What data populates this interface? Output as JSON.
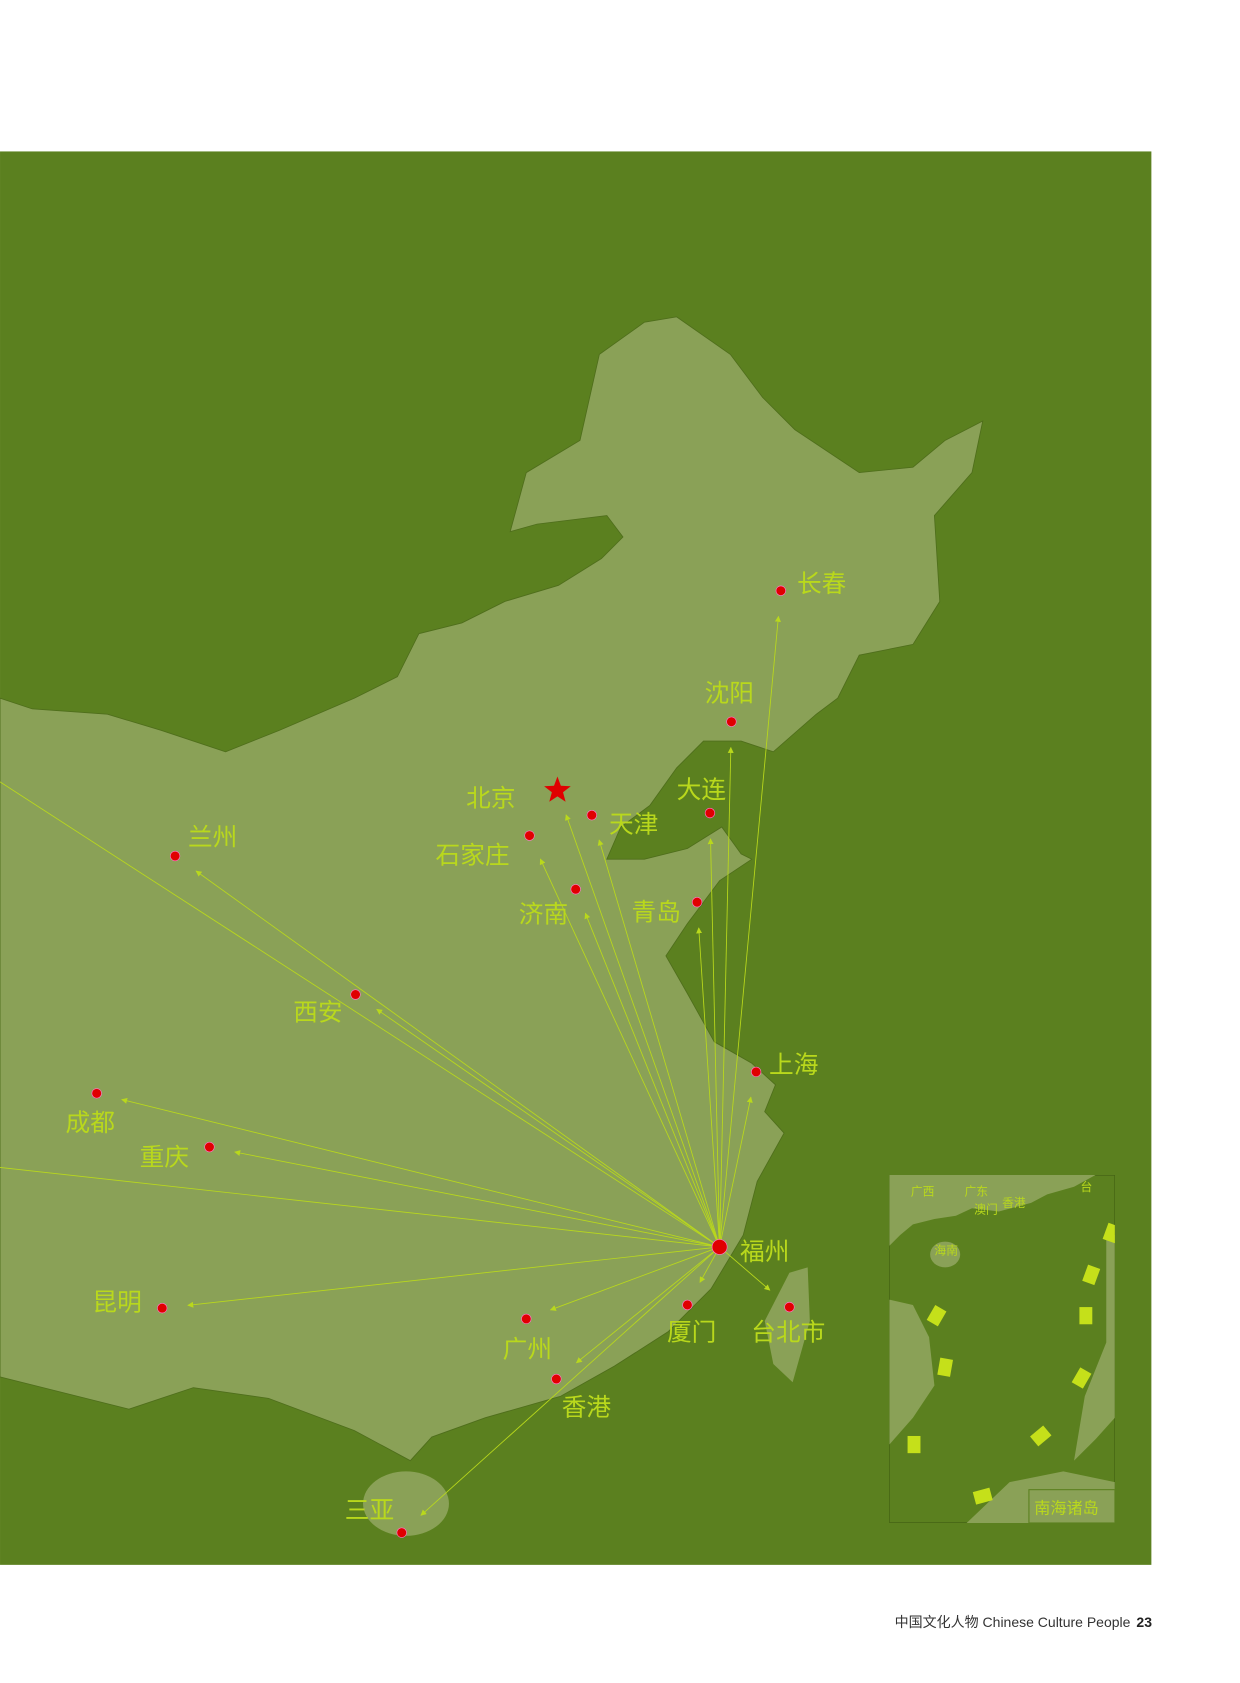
{
  "map": {
    "colors": {
      "sea": "#5b801f",
      "land": "#8aa157",
      "route": "#b9d81c",
      "city_dot": "#e00000",
      "capital_star": "#e00000"
    },
    "hub": "福州",
    "capital": "北京",
    "destinations": [
      "长春",
      "沈阳",
      "大连",
      "北京",
      "天津",
      "石家庄",
      "济南",
      "青岛",
      "兰州",
      "西安",
      "上海",
      "成都",
      "重庆",
      "昆明",
      "厦门",
      "台北市",
      "广州",
      "香港",
      "三亚"
    ],
    "city_labels": [
      "长春",
      "沈阳",
      "大连",
      "北京",
      "天津",
      "石家庄",
      "济南",
      "青岛",
      "兰州",
      "西安",
      "上海",
      "成都",
      "重庆",
      "福州",
      "昆明",
      "厦门",
      "台北市",
      "广州",
      "香港",
      "三亚"
    ]
  },
  "inset": {
    "title": "南海诸岛",
    "labels": [
      "广西",
      "广东",
      "澳门",
      "香港",
      "台",
      "海南"
    ]
  },
  "footer": {
    "publication": "中国文化人物 Chinese Culture People",
    "page_number": "23"
  }
}
